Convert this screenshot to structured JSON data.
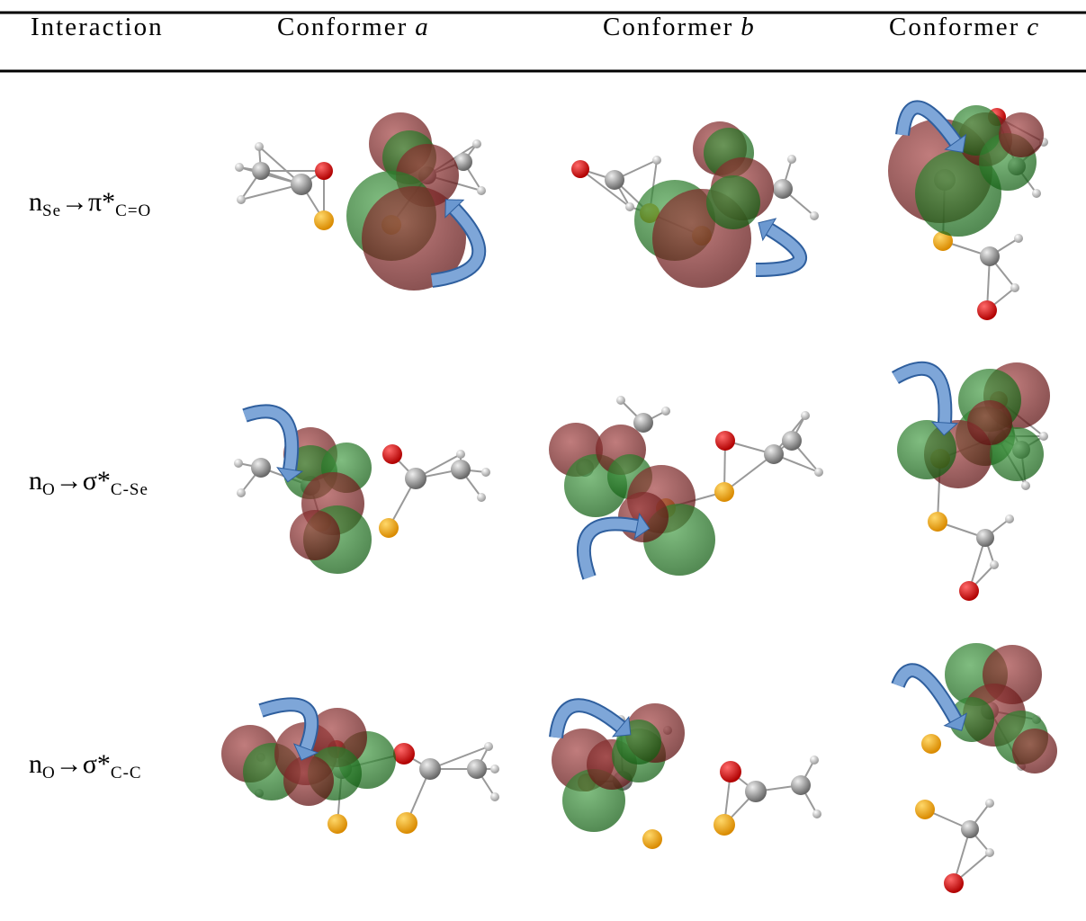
{
  "table": {
    "header": [
      {
        "text": "Interaction"
      },
      {
        "text": "Conformer",
        "variable": "a"
      },
      {
        "text": "Conformer",
        "variable": "b"
      },
      {
        "text": "Conformer",
        "variable": "c"
      }
    ],
    "rows": [
      {
        "label": {
          "donor": "n",
          "donor_sub": "Se",
          "arrow": "→",
          "acceptor": "π*",
          "acceptor_sub": "C=O"
        }
      },
      {
        "label": {
          "donor": "n",
          "donor_sub": "O",
          "arrow": "→",
          "acceptor": "σ*",
          "acceptor_sub": "C-Se"
        }
      },
      {
        "label": {
          "donor": "n",
          "donor_sub": "O",
          "arrow": "→",
          "acceptor": "σ*",
          "acceptor_sub": "C-C"
        }
      }
    ]
  }
}
